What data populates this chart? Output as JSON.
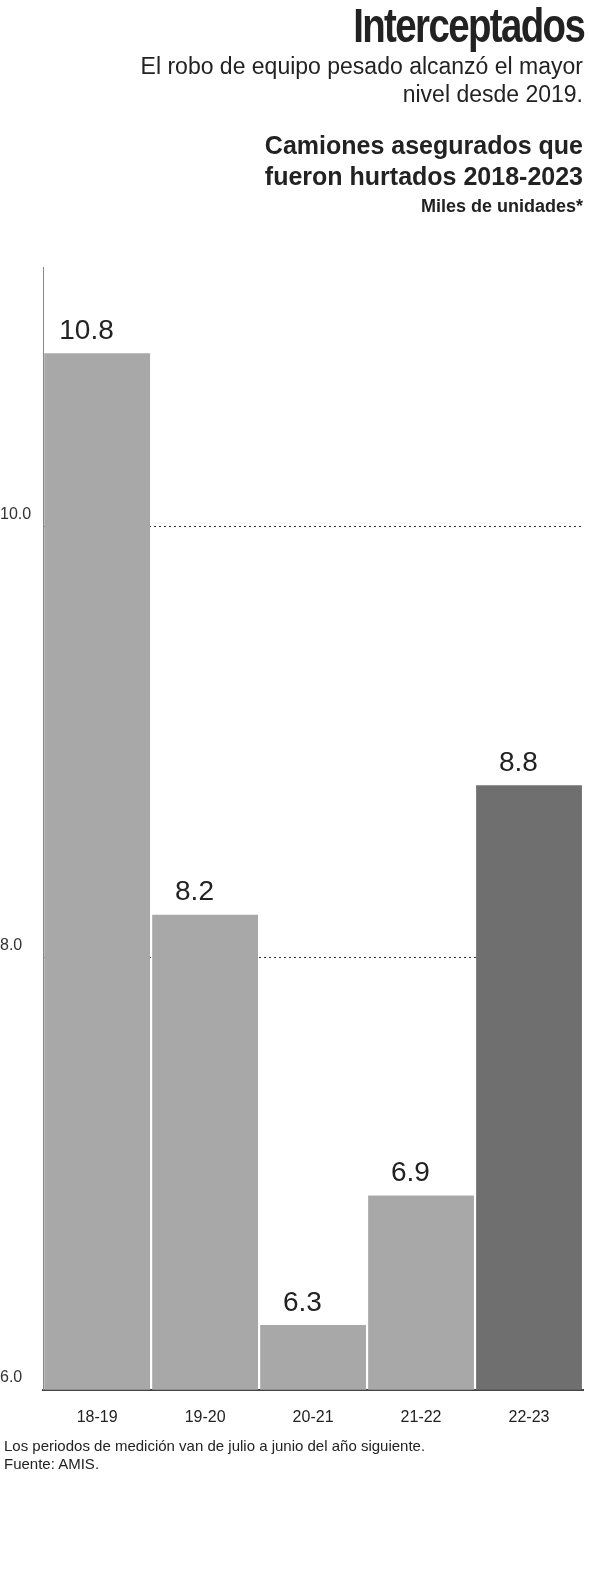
{
  "chart_data": {
    "type": "bar",
    "title": "Interceptados",
    "subtitle": "El robo de equipo pesado alcanzó el mayor nivel desde 2019.",
    "annotations": [
      "Camiones asegurados que fueron hurtados 2018-2023",
      "Los periodos de medición van de julio a junio del año siguiente. Fuente: AMIS."
    ],
    "ylabel": "Miles de unidades*",
    "categories": [
      "18-19",
      "19-20",
      "20-21",
      "21-22",
      "22-23"
    ],
    "values": [
      10.8,
      8.2,
      6.3,
      6.9,
      8.8
    ],
    "colors": [
      "#a8a8a8",
      "#a8a8a8",
      "#a8a8a8",
      "#a8a8a8",
      "#6f6f6f"
    ],
    "ylim": [
      6,
      11.2
    ],
    "yticks": [
      {
        "value": 6,
        "label": "6.0"
      },
      {
        "value": 8,
        "label": "8.0"
      },
      {
        "value": 10,
        "label": "10.0"
      }
    ],
    "grid": "y",
    "data_labels": true
  }
}
